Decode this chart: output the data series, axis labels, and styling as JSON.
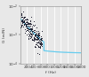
{
  "title": "",
  "ylabel": "G (m/N)",
  "xlabel": "f (Hz)",
  "xlim": [
    0,
    1800
  ],
  "ylim": [
    0.0001,
    0.01
  ],
  "yticks": [
    0.0001,
    0.001,
    0.01
  ],
  "ytick_labels": [
    "10-4",
    "10-3",
    "10-2"
  ],
  "xticks": [
    200,
    400,
    600,
    800,
    1000,
    1200,
    1400,
    1600,
    1800
  ],
  "xtick_labels": [
    "200",
    "400",
    "600",
    "800",
    "1000",
    "1200",
    "1400",
    "1600",
    "1800"
  ],
  "background": "#e8e8e8",
  "plot_bg": "#e8e8e8",
  "circles_color": "#111122",
  "line_color": "#66ccee",
  "grid_color": "#ffffff",
  "figsize": [
    1.0,
    0.87
  ],
  "dpi": 100,
  "label_fontsize": 3.2,
  "tick_fontsize": 3.0
}
